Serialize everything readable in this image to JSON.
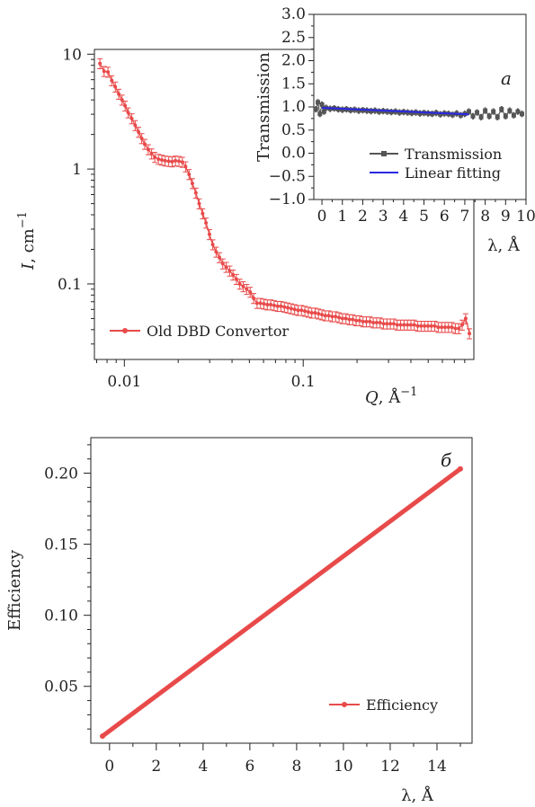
{
  "chart_data": [
    {
      "id": "sans",
      "type": "scatter",
      "scale": "log-log",
      "panel_label": "",
      "xlabel": "Q, Å⁻¹",
      "xlabel_main": "Q",
      "xlabel_unit": ", Å",
      "xlabel_sup": "−1",
      "ylabel": "I, cm⁻¹",
      "ylabel_main": "I",
      "ylabel_unit": ", cm",
      "ylabel_sup": "−1",
      "xlim": [
        0.0068,
        0.9
      ],
      "ylim": [
        0.022,
        11
      ],
      "xticks": [
        {
          "v": 0.01,
          "label": "0.01"
        },
        {
          "v": 0.1,
          "label": "0.1"
        }
      ],
      "yticks": [
        {
          "v": 0.1,
          "label": "0.1"
        },
        {
          "v": 1,
          "label": "1"
        },
        {
          "v": 10,
          "label": "10"
        }
      ],
      "legend": {
        "position": "bottom-left",
        "entries": [
          "Old DBD Convertor"
        ]
      },
      "color": "#e84a4a",
      "series": [
        {
          "name": "Old DBD Convertor",
          "x": [
            0.0073,
            0.0077,
            0.0081,
            0.0085,
            0.0089,
            0.0093,
            0.0097,
            0.0101,
            0.0105,
            0.011,
            0.0115,
            0.012,
            0.0125,
            0.013,
            0.0136,
            0.0142,
            0.0148,
            0.0155,
            0.0162,
            0.0169,
            0.0177,
            0.0185,
            0.0193,
            0.0202,
            0.0211,
            0.022,
            0.023,
            0.024,
            0.0251,
            0.0262,
            0.0274,
            0.0286,
            0.0299,
            0.0312,
            0.0326,
            0.034,
            0.0355,
            0.0371,
            0.0388,
            0.0405,
            0.0423,
            0.0442,
            0.0462,
            0.0483,
            0.0505,
            0.0528,
            0.0552,
            0.0577,
            0.0603,
            0.063,
            0.0658,
            0.0688,
            0.0719,
            0.0751,
            0.0785,
            0.082,
            0.0857,
            0.0896,
            0.0936,
            0.0978,
            0.1022,
            0.1068,
            0.1116,
            0.1166,
            0.1218,
            0.1273,
            0.133,
            0.139,
            0.1453,
            0.1518,
            0.1587,
            0.1658,
            0.1733,
            0.1811,
            0.1892,
            0.1977,
            0.2066,
            0.2159,
            0.2256,
            0.2358,
            0.2464,
            0.2575,
            0.2691,
            0.2812,
            0.2939,
            0.3071,
            0.3209,
            0.3354,
            0.3505,
            0.3663,
            0.3828,
            0.4,
            0.418,
            0.4368,
            0.4565,
            0.477,
            0.4985,
            0.5209,
            0.5444,
            0.5689,
            0.5945,
            0.6213,
            0.6493,
            0.6785,
            0.709,
            0.741,
            0.774,
            0.81,
            0.85
          ],
          "y": [
            8.3,
            7.1,
            7.0,
            5.9,
            5.2,
            4.5,
            4.0,
            3.55,
            3.1,
            2.75,
            2.4,
            2.1,
            1.85,
            1.65,
            1.48,
            1.36,
            1.27,
            1.22,
            1.2,
            1.18,
            1.17,
            1.16,
            1.18,
            1.17,
            1.15,
            1.05,
            0.9,
            0.75,
            0.62,
            0.5,
            0.41,
            0.34,
            0.27,
            0.22,
            0.19,
            0.17,
            0.15,
            0.14,
            0.13,
            0.12,
            0.11,
            0.1,
            0.095,
            0.09,
            0.085,
            0.075,
            0.068,
            0.068,
            0.067,
            0.066,
            0.066,
            0.065,
            0.064,
            0.064,
            0.063,
            0.062,
            0.061,
            0.06,
            0.059,
            0.059,
            0.058,
            0.057,
            0.056,
            0.056,
            0.055,
            0.054,
            0.053,
            0.053,
            0.052,
            0.052,
            0.051,
            0.05,
            0.05,
            0.049,
            0.049,
            0.048,
            0.048,
            0.047,
            0.047,
            0.047,
            0.046,
            0.046,
            0.046,
            0.045,
            0.045,
            0.045,
            0.045,
            0.044,
            0.044,
            0.044,
            0.044,
            0.044,
            0.044,
            0.043,
            0.043,
            0.043,
            0.043,
            0.043,
            0.043,
            0.042,
            0.042,
            0.042,
            0.042,
            0.042,
            0.041,
            0.041,
            0.044,
            0.05,
            0.037
          ],
          "error_rel": 0.1
        }
      ]
    },
    {
      "id": "transmission",
      "type": "scatter",
      "scale": "linear",
      "panel_label": "a",
      "xlabel": "λ, Å",
      "ylabel": "Transmission",
      "xlim": [
        -0.4,
        10.0
      ],
      "ylim": [
        -1.0,
        3.0
      ],
      "xticks": [
        {
          "v": 0,
          "label": "0"
        },
        {
          "v": 1,
          "label": "1"
        },
        {
          "v": 2,
          "label": "2"
        },
        {
          "v": 3,
          "label": "3"
        },
        {
          "v": 4,
          "label": "4"
        },
        {
          "v": 5,
          "label": "5"
        },
        {
          "v": 6,
          "label": "6"
        },
        {
          "v": 7,
          "label": "7"
        },
        {
          "v": 8,
          "label": "8"
        },
        {
          "v": 9,
          "label": "9"
        },
        {
          "v": 10,
          "label": "10"
        }
      ],
      "yticks": [
        {
          "v": -1.0,
          "label": "−1.0"
        },
        {
          "v": -0.5,
          "label": "−0.5"
        },
        {
          "v": 0.0,
          "label": "0.0"
        },
        {
          "v": 0.5,
          "label": "0.5"
        },
        {
          "v": 1.0,
          "label": "1.0"
        },
        {
          "v": 1.5,
          "label": "1.5"
        },
        {
          "v": 2.0,
          "label": "2.0"
        },
        {
          "v": 2.5,
          "label": "2.5"
        },
        {
          "v": 3.0,
          "label": "3.0"
        }
      ],
      "legend": {
        "position": "bottom-right",
        "entries": [
          "Transmission",
          "Linear fitting"
        ]
      },
      "series": [
        {
          "name": "Transmission",
          "color": "#555555",
          "x": [
            -0.3,
            -0.2,
            -0.1,
            0.0,
            0.1,
            0.2,
            0.4,
            0.6,
            0.8,
            1.0,
            1.2,
            1.4,
            1.6,
            1.8,
            2.0,
            2.2,
            2.4,
            2.6,
            2.8,
            3.0,
            3.2,
            3.4,
            3.6,
            3.8,
            4.0,
            4.2,
            4.4,
            4.6,
            4.8,
            5.0,
            5.2,
            5.4,
            5.6,
            5.8,
            6.0,
            6.2,
            6.4,
            6.6,
            6.8,
            7.0,
            7.2,
            7.4,
            7.6,
            7.8,
            8.0,
            8.2,
            8.4,
            8.6,
            8.8,
            9.0,
            9.2,
            9.4,
            9.6,
            9.8
          ],
          "y": [
            0.95,
            1.1,
            0.85,
            1.05,
            0.9,
            0.98,
            0.96,
            0.97,
            0.95,
            0.94,
            0.95,
            0.93,
            0.94,
            0.92,
            0.93,
            0.92,
            0.91,
            0.92,
            0.9,
            0.91,
            0.9,
            0.89,
            0.9,
            0.88,
            0.89,
            0.88,
            0.87,
            0.88,
            0.86,
            0.87,
            0.86,
            0.85,
            0.87,
            0.84,
            0.86,
            0.85,
            0.83,
            0.86,
            0.82,
            0.85,
            0.9,
            0.8,
            0.88,
            0.78,
            0.92,
            0.8,
            0.9,
            0.78,
            0.95,
            0.8,
            0.92,
            0.82,
            0.9,
            0.85
          ],
          "error_abs": 0.07
        },
        {
          "name": "Linear fitting",
          "color": "#2a2ae0",
          "x": [
            0.0,
            7.2
          ],
          "y": [
            0.98,
            0.84
          ]
        }
      ]
    },
    {
      "id": "efficiency",
      "type": "line",
      "scale": "linear",
      "panel_label": "б",
      "xlabel": "λ, Å",
      "ylabel": "Efficiency",
      "xlim": [
        -0.8,
        15.5
      ],
      "ylim": [
        0.01,
        0.225
      ],
      "xticks": [
        {
          "v": 0,
          "label": "0"
        },
        {
          "v": 2,
          "label": "2"
        },
        {
          "v": 4,
          "label": "4"
        },
        {
          "v": 6,
          "label": "6"
        },
        {
          "v": 8,
          "label": "8"
        },
        {
          "v": 10,
          "label": "10"
        },
        {
          "v": 12,
          "label": "12"
        },
        {
          "v": 14,
          "label": "14"
        }
      ],
      "yticks": [
        {
          "v": 0.05,
          "label": "0.05"
        },
        {
          "v": 0.1,
          "label": "0.10"
        },
        {
          "v": 0.15,
          "label": "0.15"
        },
        {
          "v": 0.2,
          "label": "0.20"
        }
      ],
      "legend": {
        "position": "bottom-right",
        "entries": [
          "Efficiency"
        ]
      },
      "series": [
        {
          "name": "Efficiency",
          "color": "#e84a4a",
          "x": [
            -0.3,
            15.0
          ],
          "y": [
            0.015,
            0.203
          ]
        }
      ]
    }
  ]
}
